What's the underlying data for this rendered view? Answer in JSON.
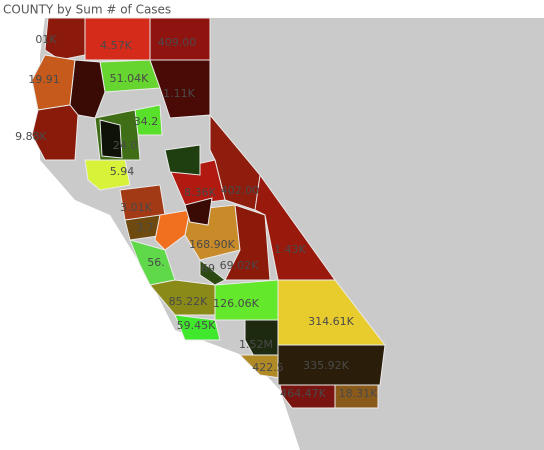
{
  "map": {
    "title": "COUNTY by Sum # of Cases",
    "regions": [
      {
        "label": "01K",
        "color": "#8b1a0c"
      },
      {
        "label": "4.57K",
        "color": "#d42b1a"
      },
      {
        "label": "409.00",
        "color": "#8f1410"
      },
      {
        "label": "19.91",
        "color": "#c55a1c"
      },
      {
        "label": "51.04K",
        "color": "#66d52f"
      },
      {
        "label": "1.11K",
        "color": "#4a0a06"
      },
      {
        "color": "#3a0a05"
      },
      {
        "label": "9.88K",
        "color": "#8a1a0a"
      },
      {
        "label": "34.2",
        "color": "#58e02a"
      },
      {
        "label": "24.0",
        "color": "#3f6e17"
      },
      {
        "label": "5.94",
        "color": "#d8f23a"
      },
      {
        "label": "1.43K",
        "color": "#991a0c"
      },
      {
        "label": "402.00",
        "color": "#8e1d0e"
      },
      {
        "label": "8.36K",
        "color": "#b01a10"
      },
      {
        "label": "3.01K",
        "color": "#a33a16"
      },
      {
        "label": "3.7",
        "color": "#6e4a10"
      },
      {
        "label": "168.90K",
        "color": "#c98a2a"
      },
      {
        "color": "#f07020"
      },
      {
        "label": "69.02K",
        "color": "#8b1a0a"
      },
      {
        "label": "56.",
        "color": "#5fd84a"
      },
      {
        "label": "69",
        "color": "#2d4a12"
      },
      {
        "label": "85.22K",
        "color": "#8a8a18"
      },
      {
        "label": "126.06K",
        "color": "#63e82c"
      },
      {
        "label": "314.61K",
        "color": "#e8cc2e"
      },
      {
        "label": "59.45K",
        "color": "#3fe82c"
      },
      {
        "label": "1.52M",
        "color": "#1e2a10"
      },
      {
        "label": "422.5",
        "color": "#b08a25"
      },
      {
        "label": "335.92K",
        "color": "#2a1e0a"
      },
      {
        "label": "464.47K",
        "color": "#7a1410"
      },
      {
        "label": "18.31K",
        "color": "#8a5a1a"
      },
      {
        "color": "#0f1206"
      },
      {
        "color": "#1f3f10"
      },
      {
        "color": "#3a0a05"
      }
    ]
  }
}
